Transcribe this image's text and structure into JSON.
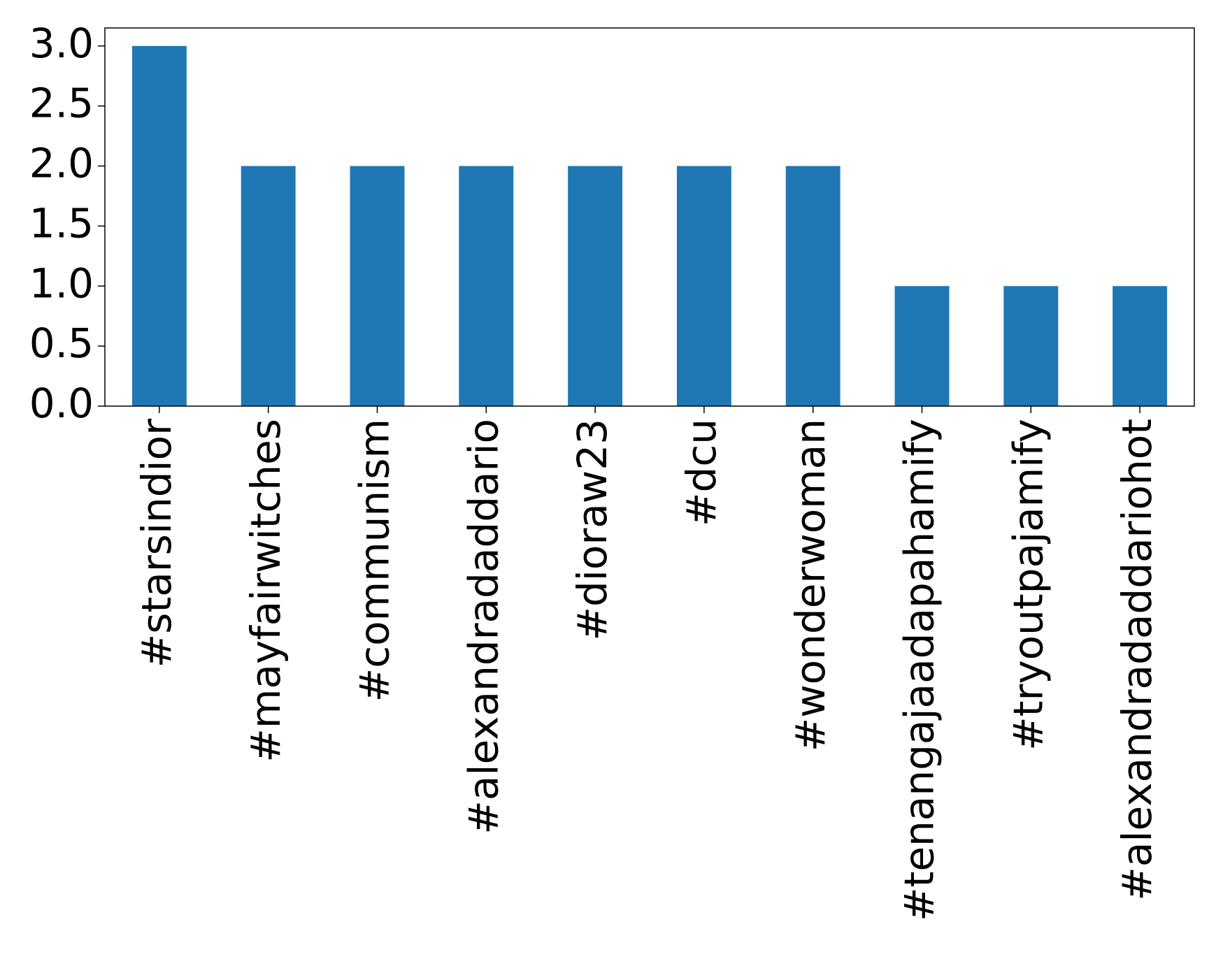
{
  "chart_data": {
    "type": "bar",
    "title": "",
    "xlabel": "",
    "ylabel": "",
    "categories": [
      "#starsindior",
      "#mayfairwitches",
      "#communism",
      "#alexandradaddario",
      "#dioraw23",
      "#dcu",
      "#wonderwoman",
      "#tenangajaadapahamify",
      "#tryoutpajamify",
      "#alexandradaddariohot"
    ],
    "values": [
      3,
      2,
      2,
      2,
      2,
      2,
      2,
      1,
      1,
      1
    ],
    "ylim": [
      0,
      3.15
    ],
    "yticks": [
      0.0,
      0.5,
      1.0,
      1.5,
      2.0,
      2.5,
      3.0
    ],
    "ytick_labels": [
      "0.0",
      "0.5",
      "1.0",
      "1.5",
      "2.0",
      "2.5",
      "3.0"
    ],
    "bar_color": "#1f77b4",
    "grid": false,
    "legend": "none"
  }
}
